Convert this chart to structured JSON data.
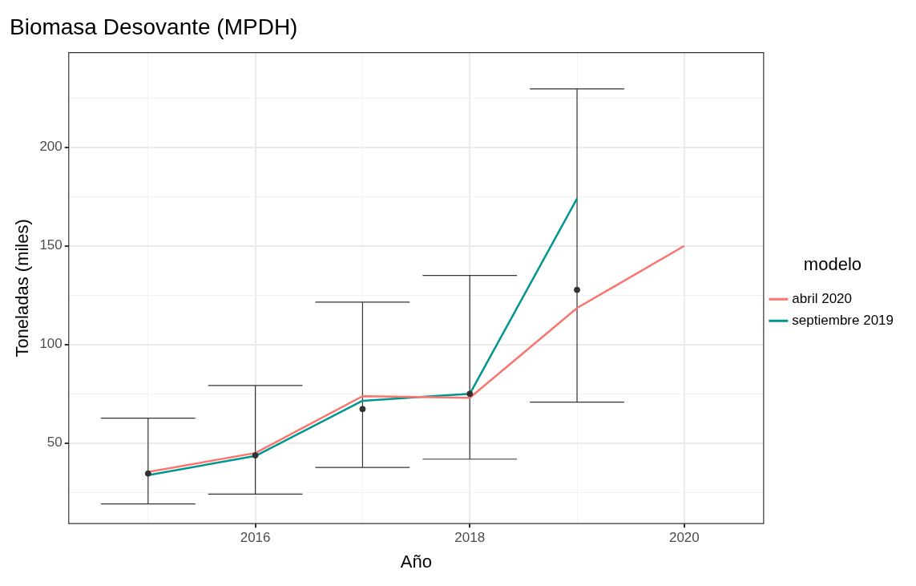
{
  "chart_data": {
    "type": "line",
    "title": "Biomasa Desovante (MPDH)",
    "xlabel": "Año",
    "ylabel": "Toneladas (miles)",
    "legend_title": "modelo",
    "legend": "right",
    "grid": true,
    "marker": "none",
    "line_style": "solid",
    "x": [
      2015,
      2016,
      2017,
      2018,
      2019,
      2020
    ],
    "xlim": [
      2014.26,
      2020.74
    ],
    "xticks": [
      {
        "value": 2015,
        "label": null
      },
      2016,
      {
        "value": 2017,
        "label": null
      },
      2018,
      {
        "value": 2019,
        "label": null
      },
      2020
    ],
    "ylim": [
      9.2,
      248
    ],
    "yticks": [
      {
        "value": 25,
        "label": null
      },
      50,
      {
        "value": 75,
        "label": null
      },
      100,
      {
        "value": 125,
        "label": null
      },
      150,
      {
        "value": 175,
        "label": null
      },
      200,
      {
        "value": 225,
        "label": null
      }
    ],
    "series": [
      {
        "type": "scatter",
        "color": "#333333",
        "marker": "circle",
        "x": [
          2015,
          2016,
          2017,
          2018,
          2019
        ],
        "values": [
          34.6,
          43.8,
          67.3,
          75,
          127.7
        ],
        "errors": [
          [
            19.2,
            62.7
          ],
          [
            24.2,
            79.2
          ],
          [
            37.7,
            121.5
          ],
          [
            41.9,
            135
          ],
          [
            70.8,
            229.6
          ]
        ]
      },
      {
        "name": "abril 2020",
        "color": "#f8766d",
        "values": [
          35.4,
          45,
          73.8,
          73,
          118.5,
          150
        ]
      },
      {
        "name": "septiembre 2019",
        "color": "#00968f",
        "values": [
          33.8,
          43.5,
          71.5,
          75,
          174,
          null
        ]
      }
    ]
  }
}
